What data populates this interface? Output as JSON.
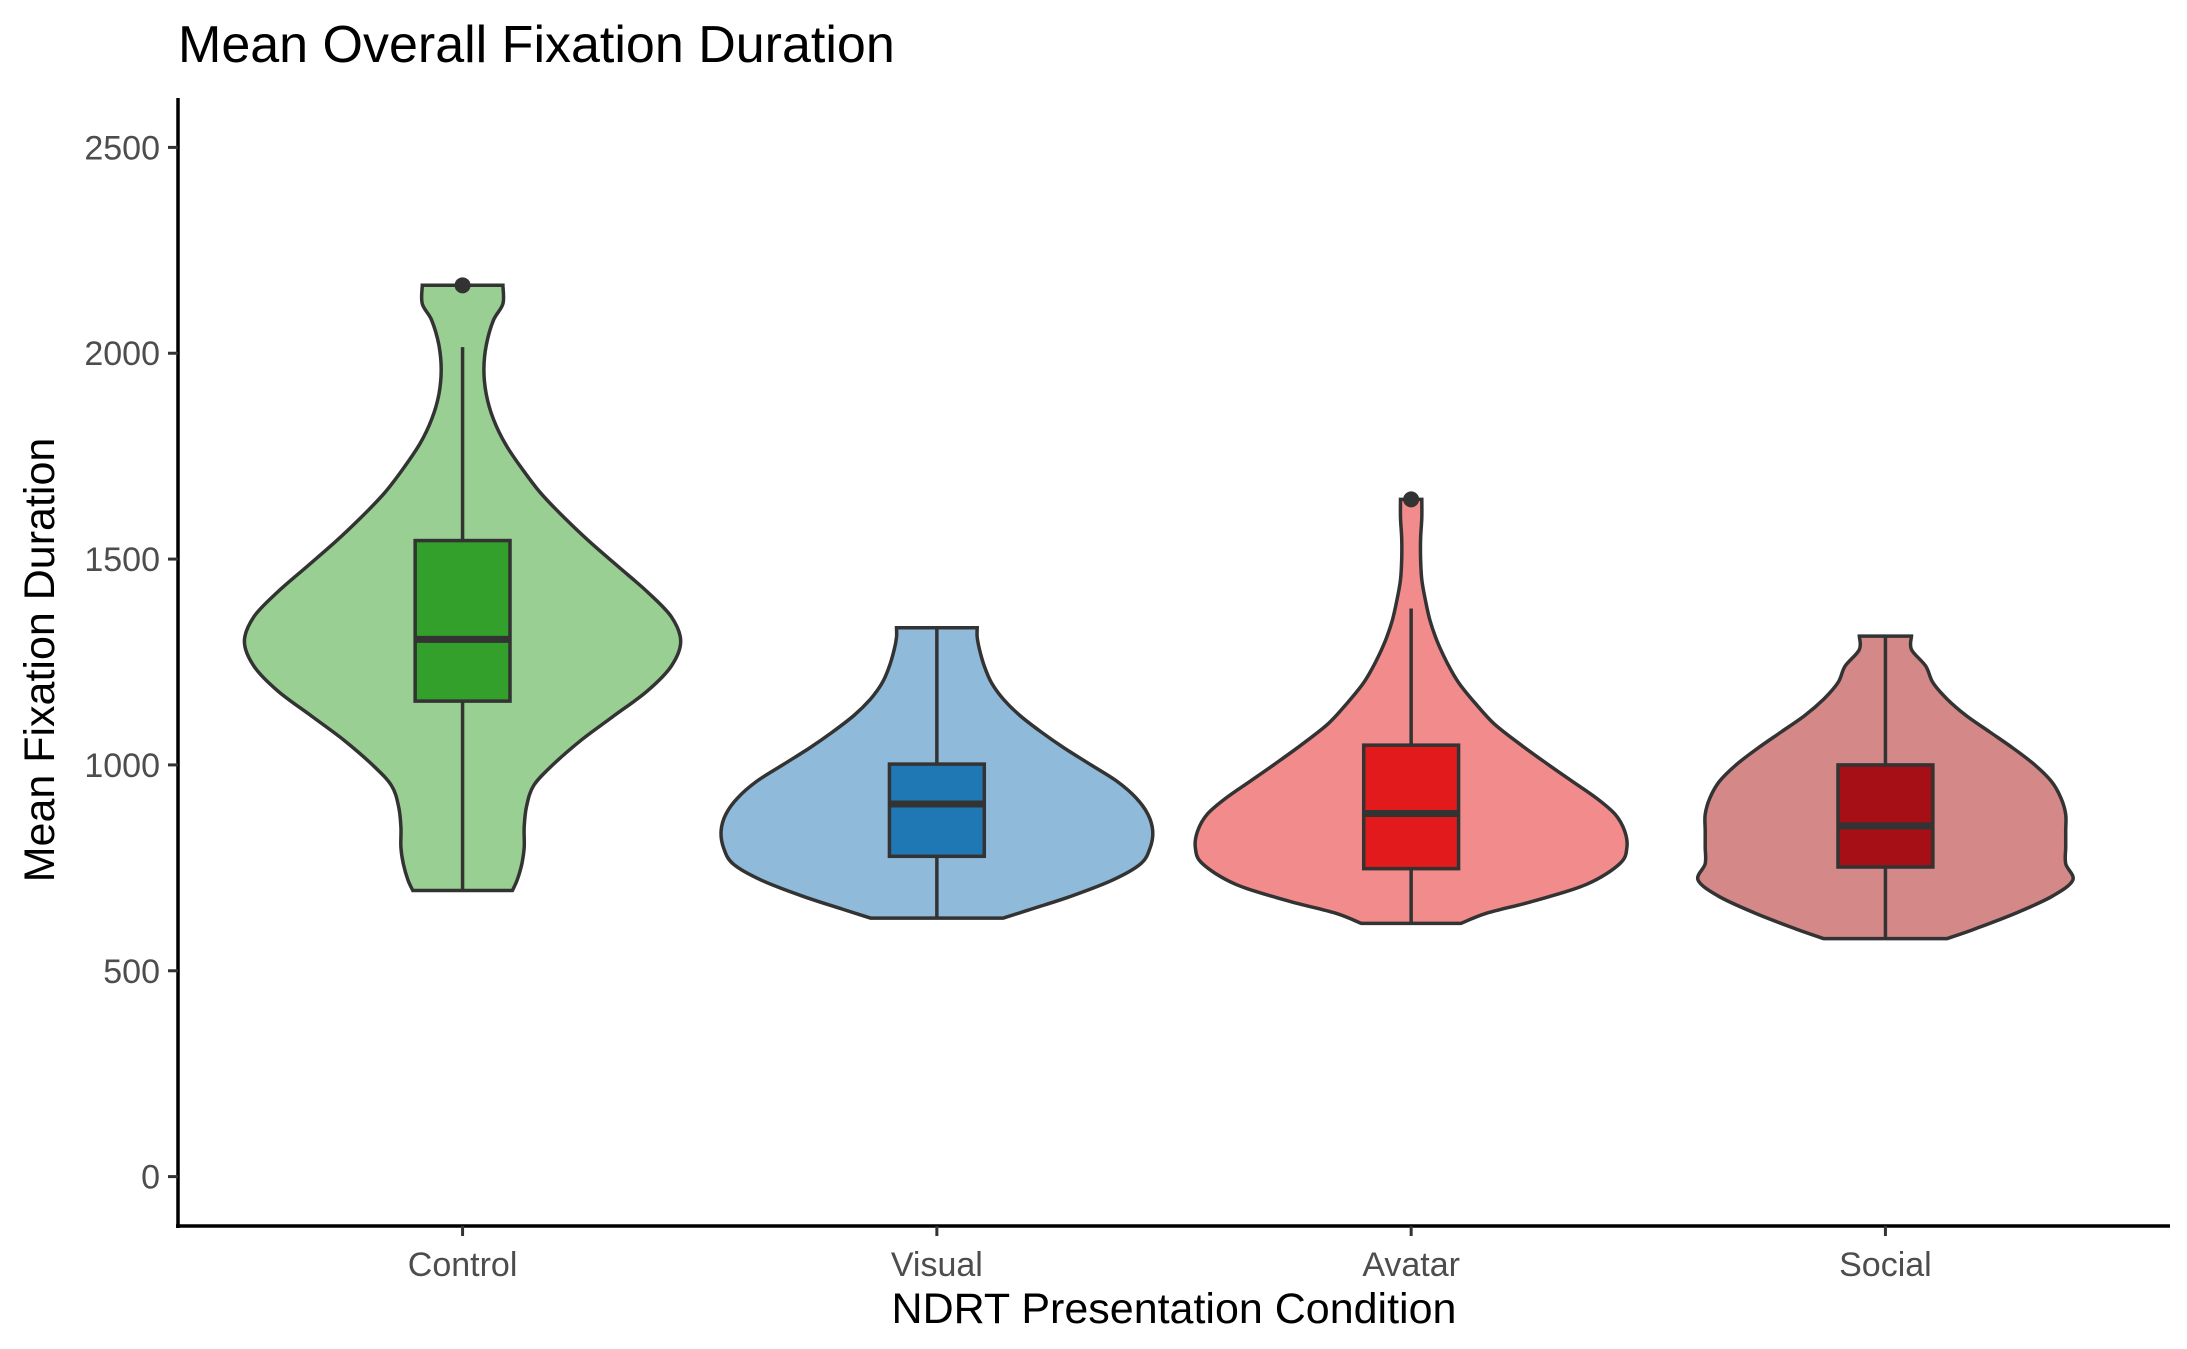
{
  "chart_data": {
    "type": "violin",
    "title": "Mean Overall Fixation Duration",
    "xlabel": "NDRT Presentation Condition",
    "ylabel": "Mean Fixation Duration",
    "ylim": [
      -120,
      2620
    ],
    "yticks": [
      0,
      500,
      1000,
      1500,
      2000,
      2500
    ],
    "grid": false,
    "legend": "none",
    "categories": [
      "Control",
      "Visual",
      "Avatar",
      "Social"
    ],
    "groups": [
      {
        "category": "Control",
        "fill": "#99cf93",
        "box_fill": "#33a02c",
        "box": {
          "lower_whisker": 695,
          "q1": 1155,
          "median": 1305,
          "q3": 1545,
          "upper_whisker": 2015
        },
        "outliers": [
          2165
        ],
        "violin": {
          "y": [
            695,
            720,
            760,
            800,
            850,
            900,
            950,
            1000,
            1060,
            1120,
            1180,
            1240,
            1300,
            1360,
            1420,
            1480,
            1540,
            1600,
            1660,
            1720,
            1780,
            1840,
            1900,
            1960,
            2020,
            2080,
            2120,
            2165
          ],
          "half_width": [
            0.21,
            0.23,
            0.25,
            0.26,
            0.26,
            0.27,
            0.3,
            0.38,
            0.5,
            0.64,
            0.78,
            0.88,
            0.92,
            0.88,
            0.78,
            0.66,
            0.54,
            0.43,
            0.33,
            0.25,
            0.18,
            0.13,
            0.1,
            0.09,
            0.1,
            0.13,
            0.17,
            0.17
          ]
        }
      },
      {
        "category": "Visual",
        "fill": "#8fbad9",
        "box_fill": "#1f78b4",
        "box": {
          "lower_whisker": 628,
          "q1": 778,
          "median": 905,
          "q3": 1002,
          "upper_whisker": 1333
        },
        "outliers": [],
        "violin": {
          "y": [
            628,
            650,
            680,
            720,
            760,
            800,
            840,
            880,
            920,
            960,
            1000,
            1040,
            1080,
            1120,
            1160,
            1200,
            1240,
            1280,
            1310,
            1333
          ],
          "half_width": [
            0.28,
            0.4,
            0.56,
            0.74,
            0.86,
            0.9,
            0.91,
            0.89,
            0.84,
            0.76,
            0.65,
            0.54,
            0.44,
            0.35,
            0.28,
            0.23,
            0.2,
            0.18,
            0.17,
            0.17
          ]
        }
      },
      {
        "category": "Avatar",
        "fill": "#f28b8b",
        "box_fill": "#e31a1c",
        "box": {
          "lower_whisker": 615,
          "q1": 748,
          "median": 882,
          "q3": 1048,
          "upper_whisker": 1380
        },
        "outliers": [
          1645
        ],
        "violin": {
          "y": [
            615,
            640,
            670,
            710,
            760,
            800,
            840,
            880,
            920,
            960,
            1000,
            1050,
            1100,
            1150,
            1200,
            1250,
            1300,
            1350,
            1400,
            1450,
            1500,
            1550,
            1600,
            1645
          ],
          "half_width": [
            0.21,
            0.32,
            0.52,
            0.74,
            0.88,
            0.91,
            0.9,
            0.86,
            0.78,
            0.68,
            0.58,
            0.46,
            0.35,
            0.27,
            0.2,
            0.15,
            0.11,
            0.08,
            0.06,
            0.045,
            0.04,
            0.04,
            0.045,
            0.045
          ]
        }
      },
      {
        "category": "Social",
        "fill": "#d48888",
        "box_fill": "#a50f15",
        "box": {
          "lower_whisker": 578,
          "q1": 752,
          "median": 852,
          "q3": 1000,
          "upper_whisker": 1313
        },
        "outliers": [],
        "violin": {
          "y": [
            578,
            600,
            640,
            680,
            720,
            760,
            800,
            840,
            880,
            920,
            960,
            1000,
            1040,
            1080,
            1120,
            1160,
            1200,
            1240,
            1280,
            1313
          ],
          "half_width": [
            0.26,
            0.37,
            0.55,
            0.7,
            0.79,
            0.76,
            0.76,
            0.76,
            0.76,
            0.74,
            0.7,
            0.63,
            0.54,
            0.44,
            0.34,
            0.26,
            0.2,
            0.17,
            0.11,
            0.11
          ]
        }
      }
    ]
  }
}
